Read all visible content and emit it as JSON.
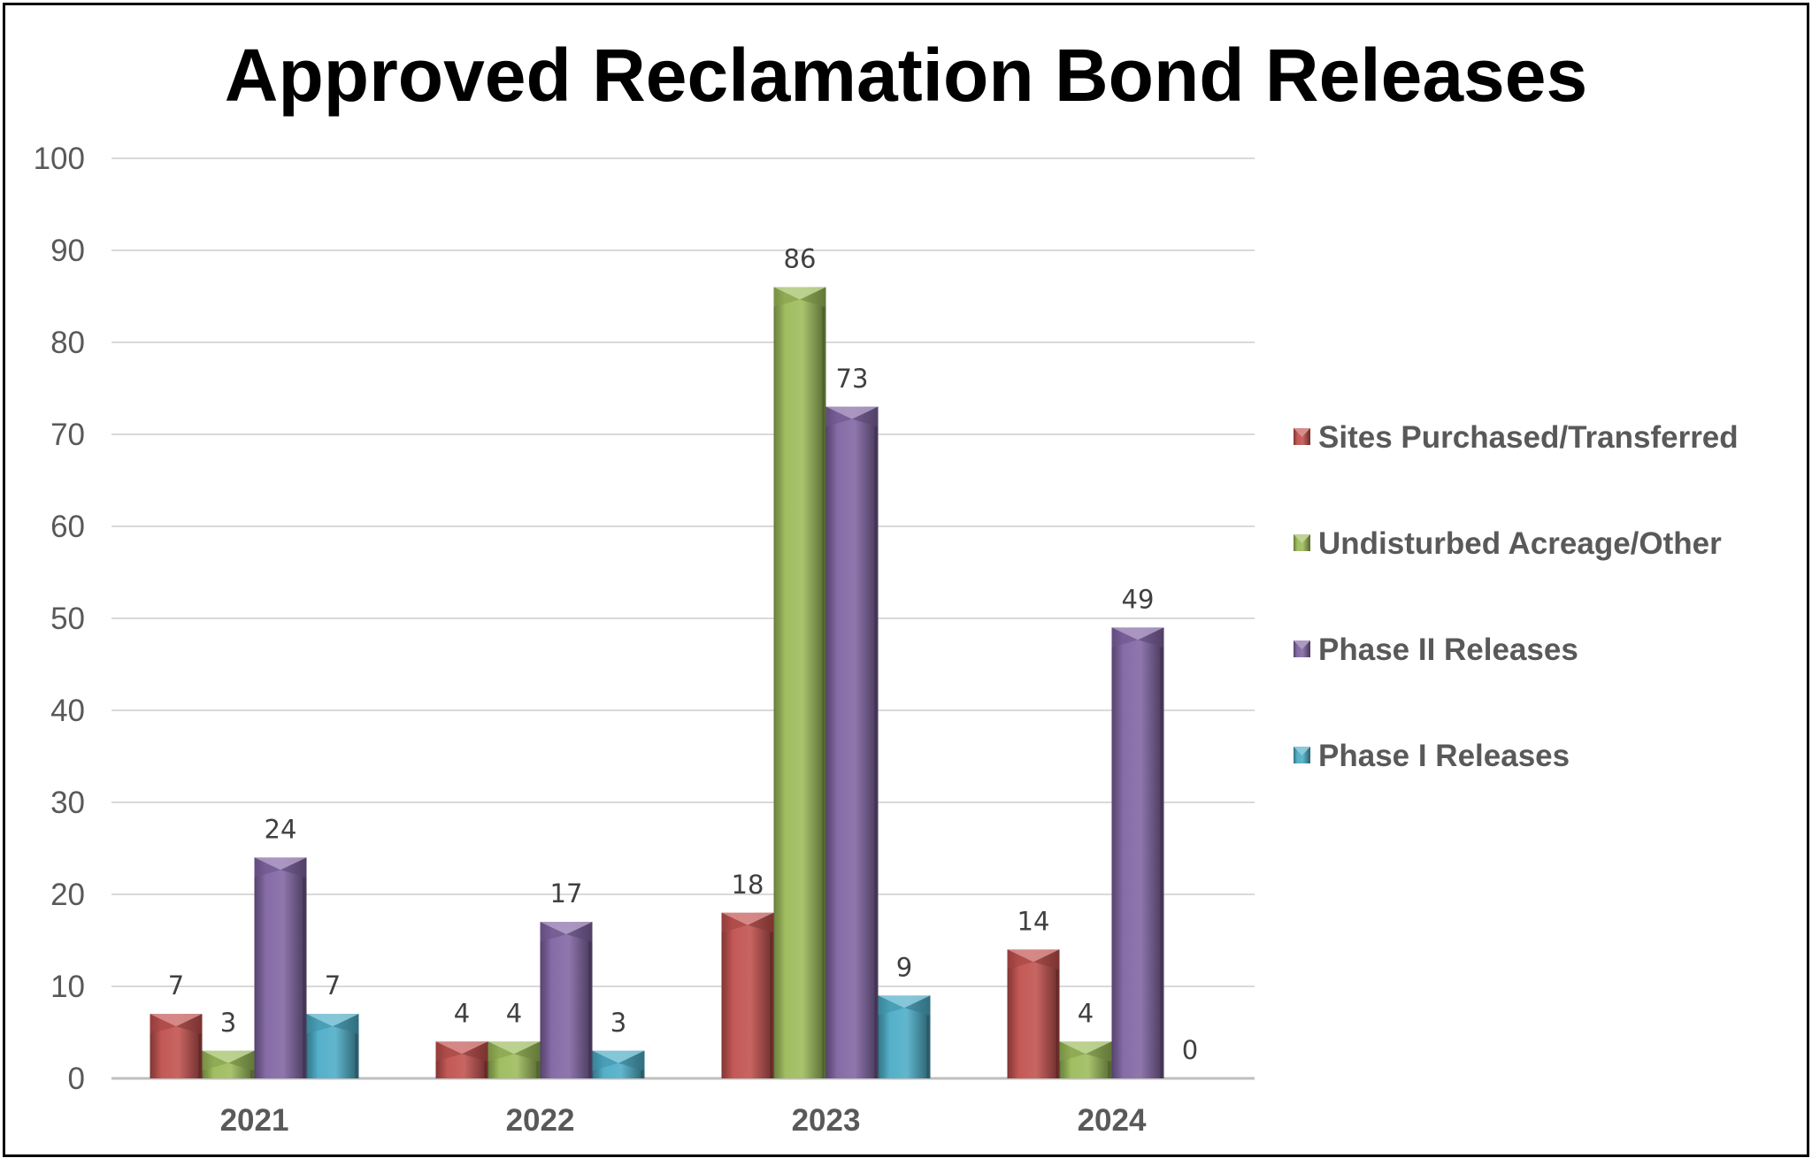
{
  "chart_data": {
    "type": "bar",
    "title": "Approved Reclamation Bond Releases",
    "xlabel": "",
    "ylabel": "",
    "categories": [
      "2021",
      "2022",
      "2023",
      "2024"
    ],
    "ylim": [
      0,
      100
    ],
    "yticks": [
      0,
      10,
      20,
      30,
      40,
      50,
      60,
      70,
      80,
      90,
      100
    ],
    "grid": true,
    "legend_position": "right",
    "series": [
      {
        "name": "Sites Purchased/Transferred",
        "color": "#c0504d",
        "values": [
          7,
          4,
          18,
          14
        ]
      },
      {
        "name": "Undisturbed Acreage/Other",
        "color": "#9bbb59",
        "values": [
          3,
          4,
          86,
          4
        ]
      },
      {
        "name": "Phase II Releases",
        "color": "#8064a2",
        "values": [
          24,
          17,
          73,
          49
        ]
      },
      {
        "name": "Phase I Releases",
        "color": "#4bacc6",
        "values": [
          7,
          3,
          9,
          0
        ]
      }
    ]
  }
}
